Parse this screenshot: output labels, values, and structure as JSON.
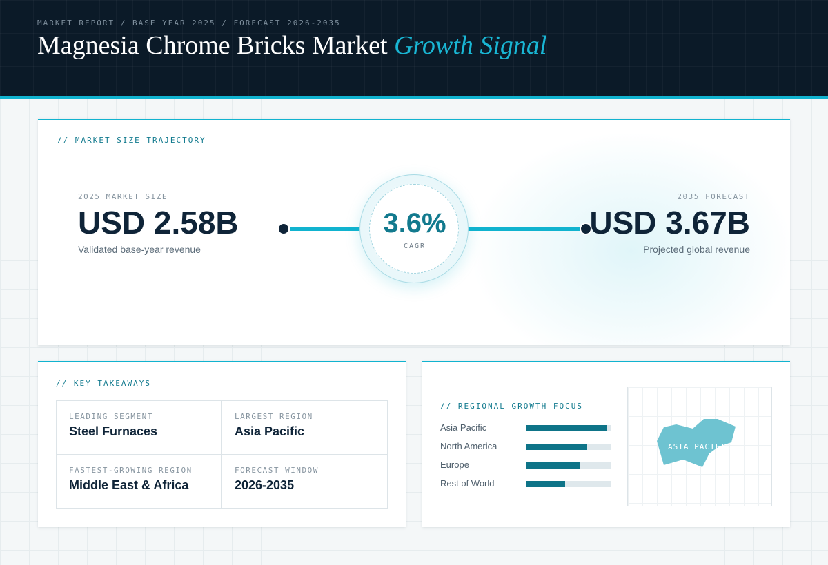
{
  "header": {
    "eyebrow": "MARKET REPORT / BASE YEAR 2025 / FORECAST 2026-2035",
    "title_main": "Magnesia Chrome Bricks Market",
    "title_accent": "Growth Signal"
  },
  "trajectory": {
    "label": "// MARKET SIZE TRAJECTORY",
    "start": {
      "caption": "2025 MARKET SIZE",
      "value": "USD 2.58B",
      "sub": "Validated base-year revenue"
    },
    "cagr": {
      "value": "3.6%",
      "caption": "CAGR"
    },
    "end": {
      "caption": "2035 FORECAST",
      "value": "USD 3.67B",
      "sub": "Projected global revenue"
    }
  },
  "takeaways": {
    "label": "// KEY TAKEAWAYS",
    "items": [
      {
        "caption": "LEADING SEGMENT",
        "value": "Steel Furnaces"
      },
      {
        "caption": "LARGEST REGION",
        "value": "Asia Pacific"
      },
      {
        "caption": "FASTEST-GROWING REGION",
        "value": "Middle East & Africa"
      },
      {
        "caption": "FORECAST WINDOW",
        "value": "2026-2035"
      }
    ]
  },
  "regional": {
    "label": "// REGIONAL GROWTH FOCUS",
    "bars": [
      {
        "name": "Asia Pacific",
        "level": 0.96
      },
      {
        "name": "North America",
        "level": 0.72
      },
      {
        "name": "Europe",
        "level": 0.64
      },
      {
        "name": "Rest of World",
        "level": 0.46
      }
    ],
    "map_label": "ASIA PACIFIC",
    "colors": {
      "bar_fill": "#0e7488",
      "bar_track": "#dfe8ec",
      "map_shape": "#6ec3d1"
    }
  },
  "colors": {
    "accent": "#11b3cf",
    "navy": "#0b1a28",
    "teal": "#127a8e"
  }
}
